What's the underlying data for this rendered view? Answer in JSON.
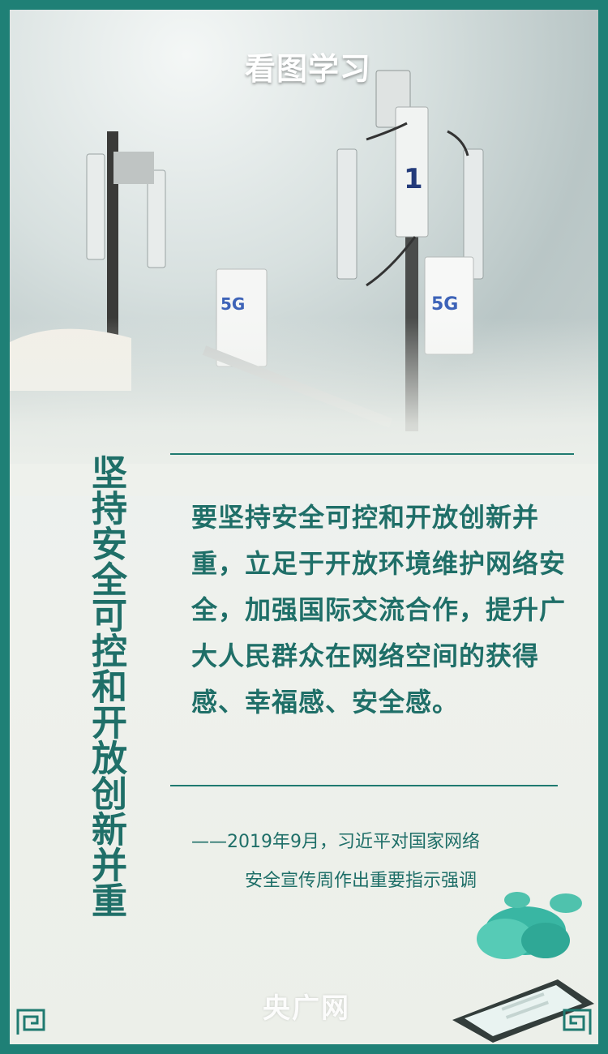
{
  "brand": {
    "logo": "看图学习",
    "watermark": "央广网"
  },
  "image": {
    "description_icons": [
      "5g-antenna-icon",
      "cloud-icon",
      "phone-icon"
    ]
  },
  "title_vertical": "坚持安全可控和开放创新并重",
  "quote": "要坚持安全可控和开放创新并重，立足于开放环境维护网络安全，加强国际交流合作，提升广大人民群众在网络空间的获得感、幸福感、安全感。",
  "source": {
    "line1": "——2019年9月，习近平对国家网络",
    "line2": "安全宣传周作出重要指示强调"
  },
  "antenna_labels": {
    "five_g": "5G",
    "number": "1"
  },
  "colors": {
    "frame": "#1f8076",
    "text": "#1f6f68"
  }
}
